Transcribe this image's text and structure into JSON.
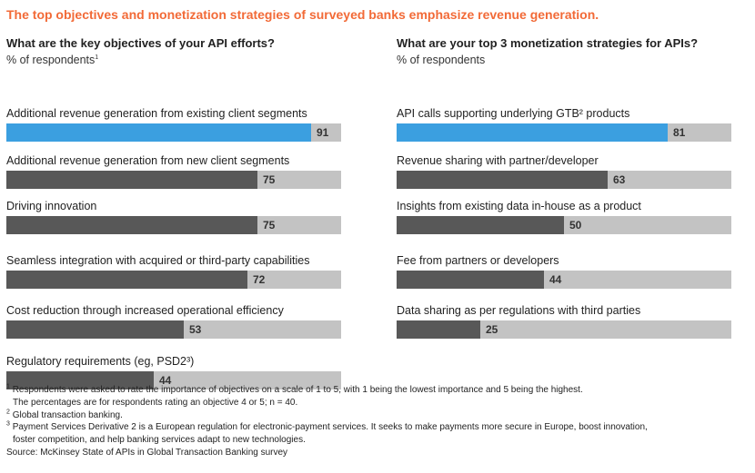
{
  "title": "The top objectives and monetization strategies of surveyed banks emphasize revenue generation.",
  "colors": {
    "title": "#f26a37",
    "highlight": "#3b9fe0",
    "bar": "#585858",
    "track": "#c3c3c3"
  },
  "chart_data": [
    {
      "type": "bar",
      "orientation": "horizontal",
      "title": "What are the key objectives of your API efforts?",
      "subtitle": "% of respondents",
      "subtitle_note": "1",
      "categories": [
        "Additional revenue generation from existing client segments",
        "Additional revenue generation from new client segments",
        "Driving innovation",
        "Seamless integration with acquired or third-party capabilities",
        "Cost reduction through increased operational efficiency",
        "Regulatory requirements (eg, PSD2³)"
      ],
      "values": [
        91,
        75,
        75,
        72,
        53,
        44
      ],
      "highlight_index": 0,
      "xlim": [
        0,
        100
      ],
      "grid": false
    },
    {
      "type": "bar",
      "orientation": "horizontal",
      "title": "What are your top 3 monetization strategies for APIs?",
      "subtitle": "% of respondents",
      "categories": [
        "API calls supporting underlying GTB² products",
        "Revenue sharing with partner/developer",
        "Insights from existing data in-house as a product",
        "Fee from partners or developers",
        "Data sharing as per regulations with third parties"
      ],
      "values": [
        81,
        63,
        50,
        44,
        25
      ],
      "highlight_index": 0,
      "xlim": [
        0,
        100
      ],
      "grid": false
    }
  ],
  "footnotes": {
    "fn1_mark": "1",
    "fn1_line1": "Respondents were asked to rate the importance of objectives on a scale of 1 to 5, with 1 being the lowest importance and 5 being the highest.",
    "fn1_line2": "The percentages are for respondents rating an objective 4 or 5; n = 40.",
    "fn2_mark": "2",
    "fn2": "Global transaction banking.",
    "fn3_mark": "3",
    "fn3_line1": "Payment Services Derivative 2 is a European regulation for electronic-payment services. It seeks to make payments more secure in Europe, boost innovation,",
    "fn3_line2": "foster competition, and help banking services adapt to new technologies.",
    "source": "Source: McKinsey State of APIs in Global Transaction Banking survey"
  }
}
